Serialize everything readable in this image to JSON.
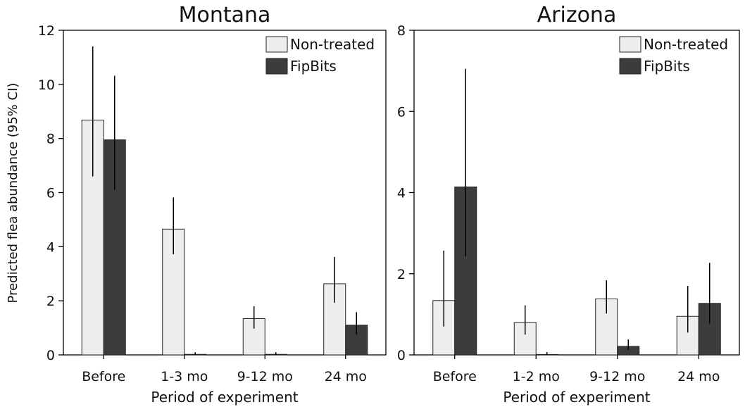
{
  "colors": {
    "non_treated": "#eeeeee",
    "fipbits": "#3c3c3c",
    "axis": "#000000"
  },
  "ylabel": "Predicted flea abundance (95% CI)",
  "chart_data": [
    {
      "type": "bar",
      "title": "Montana",
      "xlabel": "Period of experiment",
      "ylabel": "Predicted flea abundance (95% CI)",
      "categories": [
        "Before",
        "1-3 mo",
        "9-12 mo",
        "24 mo"
      ],
      "ylim": [
        0,
        12
      ],
      "yticks": [
        0,
        2,
        4,
        6,
        8,
        10,
        12
      ],
      "legend": "top-right",
      "series": [
        {
          "name": "Non-treated",
          "values": [
            8.68,
            4.65,
            1.34,
            2.63
          ],
          "ci_low": [
            6.6,
            3.72,
            0.97,
            1.93
          ],
          "ci_high": [
            11.4,
            5.82,
            1.8,
            3.62
          ]
        },
        {
          "name": "FipBits",
          "values": [
            7.95,
            0.02,
            0.02,
            1.1
          ],
          "ci_low": [
            6.1,
            0,
            0,
            0.75
          ],
          "ci_high": [
            10.32,
            0.1,
            0.1,
            1.58
          ]
        }
      ]
    },
    {
      "type": "bar",
      "title": "Arizona",
      "xlabel": "Period of experiment",
      "ylabel": "",
      "categories": [
        "Before",
        "1-2 mo",
        "9-12 mo",
        "24 mo"
      ],
      "ylim": [
        0,
        8
      ],
      "yticks": [
        0,
        2,
        4,
        6,
        8
      ],
      "legend": "top-right",
      "series": [
        {
          "name": "Non-treated",
          "values": [
            1.34,
            0.8,
            1.38,
            0.95
          ],
          "ci_low": [
            0.7,
            0.5,
            1.02,
            0.55
          ],
          "ci_high": [
            2.57,
            1.22,
            1.84,
            1.7
          ]
        },
        {
          "name": "FipBits",
          "values": [
            4.14,
            0.01,
            0.21,
            1.27
          ],
          "ci_low": [
            2.43,
            0,
            0.12,
            0.77
          ],
          "ci_high": [
            7.05,
            0.07,
            0.38,
            2.27
          ]
        }
      ]
    }
  ]
}
